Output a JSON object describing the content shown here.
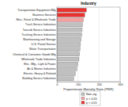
{
  "chart_data": {
    "type": "bar",
    "orientation": "horizontal",
    "title": "Industry",
    "x_label": "Proportionate Mortality Ratio (PMR)",
    "categories": [
      "Transportation Equipment Mfg",
      "Business Services",
      "Misc. Retail & Wholesale Trade",
      "Truck Service Industries",
      "Taxicab Service Industries",
      "Trucking Service Industries",
      "Warehousing and Storage",
      "U.S. Postal Service",
      "Water Transportation",
      "Chemical & Consumer Goods Mfg",
      "Wholesale Trade Industries",
      "Elec. Mfg., Light & Power",
      "Air & Marine Industries",
      "Electric, Heavy & Related",
      "Building Service Industries"
    ],
    "series": [
      {
        "name": "Non-sig",
        "color": "#c0c0c0",
        "values": [
          null,
          null,
          null,
          122,
          120,
          118,
          115,
          112,
          110,
          108,
          105,
          100,
          95,
          88,
          80
        ]
      },
      {
        "name": "p < 0.05",
        "color": "#f4a0a0",
        "values": [
          null,
          null,
          126,
          null,
          null,
          null,
          null,
          null,
          null,
          null,
          null,
          null,
          null,
          null,
          null
        ]
      },
      {
        "name": "p < 0.01",
        "color": "#e8322f",
        "values": [
          140,
          132,
          null,
          null,
          null,
          null,
          null,
          null,
          null,
          null,
          null,
          null,
          null,
          null,
          null
        ]
      }
    ],
    "xlim": [
      0,
      300
    ],
    "xticks": [
      0,
      100,
      200,
      300
    ],
    "legend": "bottom-right"
  }
}
